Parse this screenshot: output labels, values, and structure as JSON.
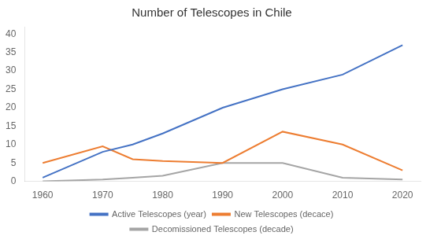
{
  "chart_data": {
    "type": "line",
    "title": "Number of Telescopes in Chile",
    "x": [
      1960,
      1970,
      1975,
      1980,
      1990,
      2000,
      2010,
      2020
    ],
    "series": [
      {
        "name": "Active Telescopes (year)",
        "color": "#4472C4",
        "values": [
          1,
          8,
          10,
          13,
          20,
          25,
          29,
          37
        ]
      },
      {
        "name": "New Telescopes (decace)",
        "color": "#ED7D31",
        "values": [
          5,
          9.5,
          6,
          5.5,
          5,
          13.5,
          10,
          3
        ]
      },
      {
        "name": "Decomissioned Telescopes (decade)",
        "color": "#A5A5A5",
        "values": [
          0,
          0.5,
          1,
          1.5,
          5,
          5,
          1,
          0.5
        ]
      }
    ],
    "xlim": [
      1957,
      2023
    ],
    "ylim": [
      0,
      42
    ],
    "xticks": [
      1960,
      1970,
      1980,
      1990,
      2000,
      2010,
      2020
    ],
    "yticks": [
      0,
      5,
      10,
      15,
      20,
      25,
      30,
      35,
      40
    ],
    "grid": false,
    "legend": "bottom"
  }
}
